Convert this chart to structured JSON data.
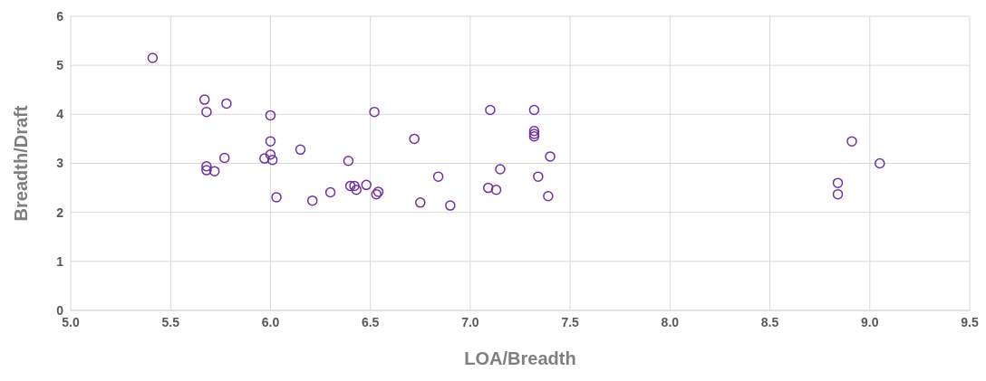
{
  "chart_data": {
    "type": "scatter",
    "xlabel": "LOA/Breadth",
    "ylabel": "Breadth/Draft",
    "x": [
      5.41,
      5.67,
      5.68,
      5.78,
      6.0,
      6.0,
      6.0,
      5.97,
      6.01,
      6.15,
      5.68,
      5.68,
      5.72,
      5.77,
      6.03,
      6.21,
      6.3,
      6.52,
      6.72,
      6.39,
      6.4,
      6.42,
      6.43,
      6.48,
      6.54,
      6.53,
      6.84,
      6.75,
      6.9,
      7.1,
      7.32,
      7.32,
      7.32,
      7.32,
      7.4,
      7.15,
      7.34,
      7.09,
      7.13,
      7.39,
      9.05,
      8.84,
      8.84,
      8.91
    ],
    "values": [
      5.15,
      4.3,
      4.05,
      4.22,
      3.98,
      3.45,
      3.18,
      3.1,
      3.07,
      3.28,
      2.94,
      2.86,
      2.84,
      3.11,
      2.31,
      2.24,
      2.41,
      4.05,
      3.5,
      3.05,
      2.54,
      2.54,
      2.46,
      2.56,
      2.42,
      2.37,
      2.73,
      2.2,
      2.14,
      4.09,
      4.09,
      3.66,
      3.6,
      3.55,
      3.14,
      2.88,
      2.73,
      2.5,
      2.46,
      2.33,
      3.0,
      2.6,
      2.37,
      3.45
    ],
    "color": "#7030a0",
    "marker": "circle",
    "grid": true,
    "xlim": [
      5.0,
      9.5
    ],
    "xticks": [
      {
        "value": 5.0,
        "label": "5.0"
      },
      {
        "value": 5.5,
        "label": "5.5"
      },
      {
        "value": 6.0,
        "label": "6.0"
      },
      {
        "value": 6.5,
        "label": "6.5"
      },
      {
        "value": 7.0,
        "label": "7.0"
      },
      {
        "value": 7.5,
        "label": "7.5"
      },
      {
        "value": 8.0,
        "label": "8.0"
      },
      {
        "value": 8.5,
        "label": "8.5"
      },
      {
        "value": 9.0,
        "label": "9.0"
      },
      {
        "value": 9.5,
        "label": "9.5"
      }
    ],
    "ylim": [
      0,
      6
    ],
    "yticks": [
      0,
      1,
      2,
      3,
      4,
      5,
      6
    ]
  }
}
